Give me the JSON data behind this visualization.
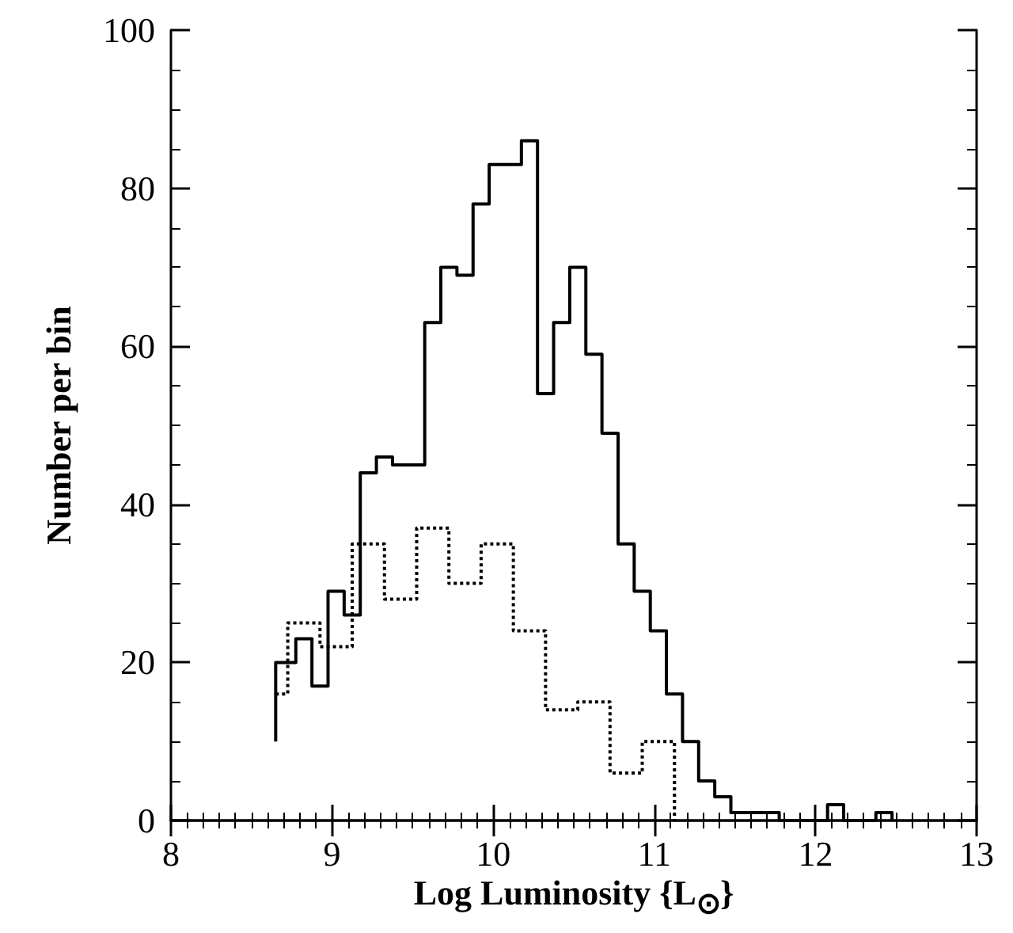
{
  "chart_data": {
    "type": "step",
    "xlabel": "Log Luminosity {L$_{⊙}$}",
    "ylabel": "Number per bin",
    "xlim": [
      8,
      13
    ],
    "xticks": [
      8,
      9,
      10,
      11,
      12,
      13
    ],
    "ylim": [
      0,
      100
    ],
    "yticks": [
      0,
      20,
      40,
      60,
      80,
      100
    ],
    "series": [
      {
        "color": "#000000",
        "line_style": "solid",
        "x": [
          8.65,
          8.775,
          8.875,
          8.975,
          9.075,
          9.175,
          9.275,
          9.375,
          9.475,
          9.575,
          9.675,
          9.775,
          9.875,
          9.975,
          10.075,
          10.175,
          10.275,
          10.375,
          10.475,
          10.575,
          10.675,
          10.775,
          10.875,
          10.975,
          11.075,
          11.175,
          11.275,
          11.375,
          11.475,
          11.575,
          11.675,
          11.775,
          11.875,
          11.975,
          12.075,
          12.175,
          12.275,
          12.375,
          12.475,
          12.475
        ],
        "values": [
          10,
          20,
          23,
          17,
          29,
          26,
          44,
          46,
          45,
          45,
          63,
          70,
          69,
          78,
          83,
          83,
          86,
          54,
          63,
          70,
          59,
          49,
          35,
          29,
          24,
          16,
          10,
          5,
          3,
          1,
          1,
          1,
          0,
          0,
          0,
          2,
          0,
          0,
          1,
          0
        ]
      },
      {
        "color": "#000000",
        "line_style": "dotted",
        "x": [
          8.65,
          8.725,
          8.925,
          9.125,
          9.325,
          9.525,
          9.725,
          9.925,
          10.125,
          10.325,
          10.525,
          10.725,
          10.925,
          11.125,
          11.125
        ],
        "values": [
          16,
          16,
          25,
          22,
          35,
          28,
          37,
          30,
          35,
          24,
          14,
          15,
          6,
          10,
          0
        ]
      }
    ]
  }
}
